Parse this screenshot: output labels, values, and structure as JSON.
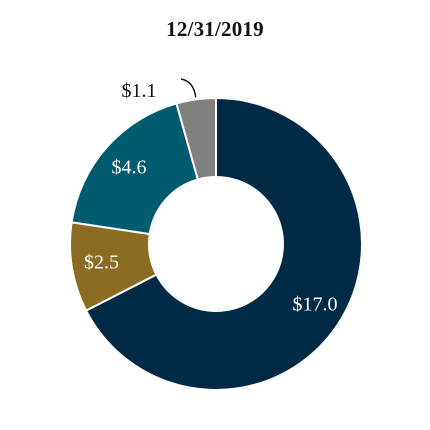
{
  "chart_data": {
    "type": "pie",
    "title": "12/31/2019",
    "donut": true,
    "slices": [
      {
        "label": "$17.0",
        "value": 17.0,
        "color": "#002a45",
        "label_color": "#ffffff"
      },
      {
        "label": "$2.5",
        "value": 2.5,
        "color": "#8c6b23",
        "label_color": "#ffffff"
      },
      {
        "label": "$4.6",
        "value": 4.6,
        "color": "#005b6f",
        "label_color": "#ffffff"
      },
      {
        "label": "$1.1",
        "value": 1.1,
        "color": "#808080",
        "label_color": "#111111"
      }
    ]
  }
}
